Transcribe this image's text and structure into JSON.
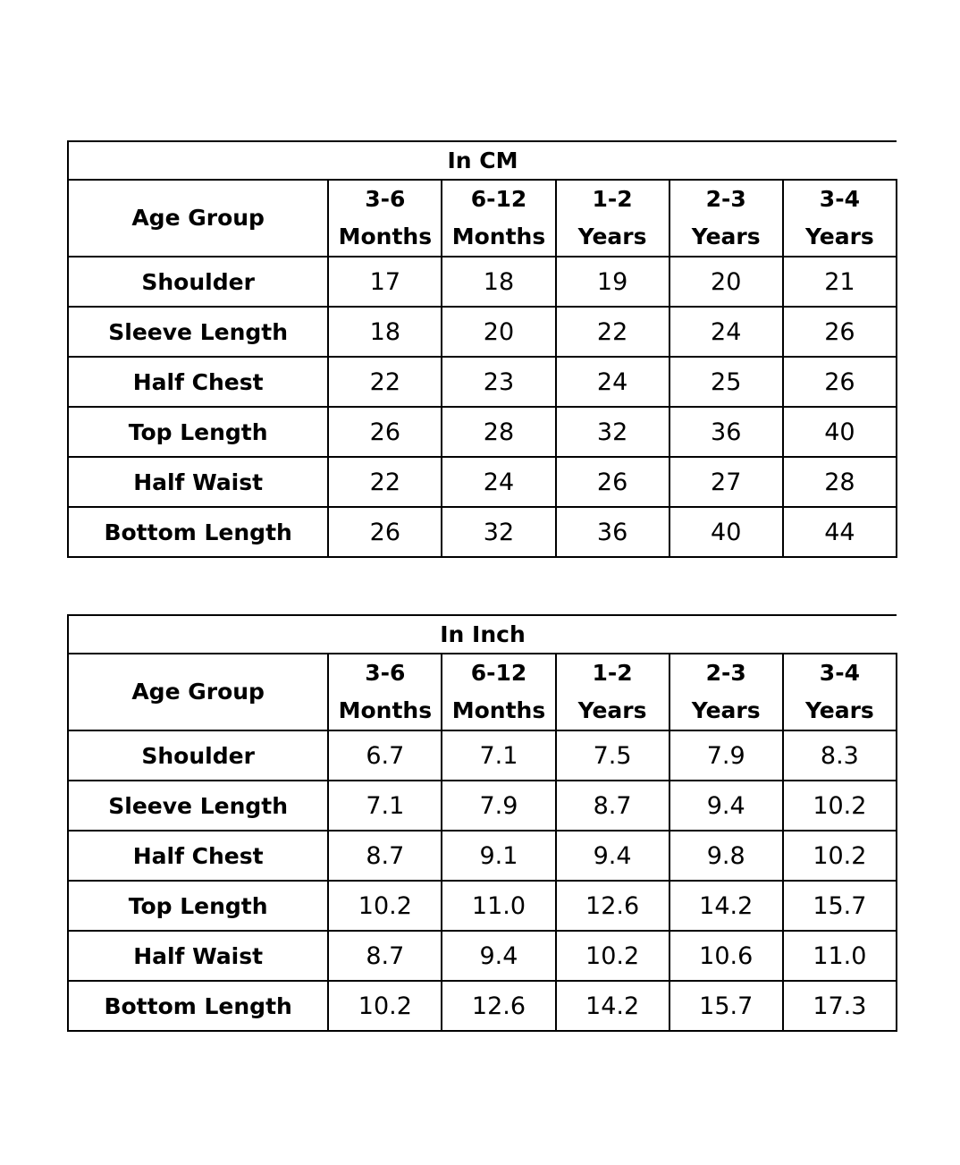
{
  "tables": [
    {
      "title": "In CM",
      "corner_label": "Age Group",
      "columns": [
        {
          "line1": "3-6",
          "line2": "Months"
        },
        {
          "line1": "6-12",
          "line2": "Months"
        },
        {
          "line1": "1-2",
          "line2": "Years"
        },
        {
          "line1": "2-3",
          "line2": "Years"
        },
        {
          "line1": "3-4",
          "line2": "Years"
        }
      ],
      "rows": [
        {
          "label": "Shoulder",
          "values": [
            "17",
            "18",
            "19",
            "20",
            "21"
          ]
        },
        {
          "label": "Sleeve Length",
          "values": [
            "18",
            "20",
            "22",
            "24",
            "26"
          ]
        },
        {
          "label": "Half Chest",
          "values": [
            "22",
            "23",
            "24",
            "25",
            "26"
          ]
        },
        {
          "label": "Top Length",
          "values": [
            "26",
            "28",
            "32",
            "36",
            "40"
          ]
        },
        {
          "label": "Half Waist",
          "values": [
            "22",
            "24",
            "26",
            "27",
            "28"
          ]
        },
        {
          "label": "Bottom Length",
          "values": [
            "26",
            "32",
            "36",
            "40",
            "44"
          ]
        }
      ]
    },
    {
      "title": "In Inch",
      "corner_label": "Age Group",
      "columns": [
        {
          "line1": "3-6",
          "line2": "Months"
        },
        {
          "line1": "6-12",
          "line2": "Months"
        },
        {
          "line1": "1-2",
          "line2": "Years"
        },
        {
          "line1": "2-3",
          "line2": "Years"
        },
        {
          "line1": "3-4",
          "line2": "Years"
        }
      ],
      "rows": [
        {
          "label": "Shoulder",
          "values": [
            "6.7",
            "7.1",
            "7.5",
            "7.9",
            "8.3"
          ]
        },
        {
          "label": "Sleeve Length",
          "values": [
            "7.1",
            "7.9",
            "8.7",
            "9.4",
            "10.2"
          ]
        },
        {
          "label": "Half Chest",
          "values": [
            "8.7",
            "9.1",
            "9.4",
            "9.8",
            "10.2"
          ]
        },
        {
          "label": "Top Length",
          "values": [
            "10.2",
            "11.0",
            "12.6",
            "14.2",
            "15.7"
          ]
        },
        {
          "label": "Half Waist",
          "values": [
            "8.7",
            "9.4",
            "10.2",
            "10.6",
            "11.0"
          ]
        },
        {
          "label": "Bottom Length",
          "values": [
            "10.2",
            "12.6",
            "14.2",
            "15.7",
            "17.3"
          ]
        }
      ]
    }
  ]
}
